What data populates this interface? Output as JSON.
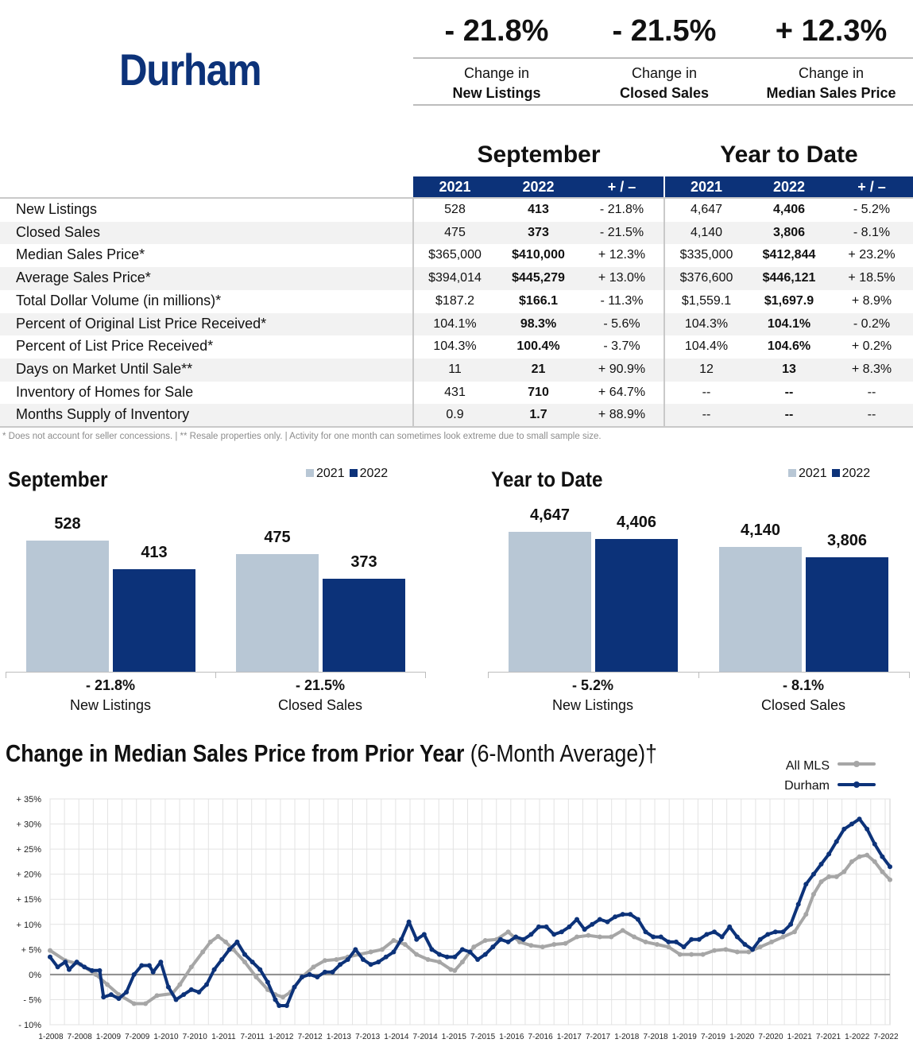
{
  "header": {
    "area_title": "Durham",
    "kpis": [
      {
        "value": "- 21.8%",
        "line1": "Change in",
        "line2": "New Listings"
      },
      {
        "value": "- 21.5%",
        "line1": "Change in",
        "line2": "Closed Sales"
      },
      {
        "value": "+ 12.3%",
        "line1": "Change in",
        "line2": "Median Sales Price"
      }
    ]
  },
  "table": {
    "section_month": "September",
    "section_ytd": "Year to Date",
    "columns": [
      "2021",
      "2022",
      "+ / –",
      "2021",
      "2022",
      "+ / –"
    ],
    "rows": [
      {
        "label": "New Listings",
        "m2021": "528",
        "m2022": "413",
        "mchg": "- 21.8%",
        "y2021": "4,647",
        "y2022": "4,406",
        "ychg": "- 5.2%"
      },
      {
        "label": "Closed Sales",
        "m2021": "475",
        "m2022": "373",
        "mchg": "- 21.5%",
        "y2021": "4,140",
        "y2022": "3,806",
        "ychg": "- 8.1%"
      },
      {
        "label": "Median Sales Price*",
        "m2021": "$365,000",
        "m2022": "$410,000",
        "mchg": "+ 12.3%",
        "y2021": "$335,000",
        "y2022": "$412,844",
        "ychg": "+ 23.2%"
      },
      {
        "label": "Average Sales Price*",
        "m2021": "$394,014",
        "m2022": "$445,279",
        "mchg": "+ 13.0%",
        "y2021": "$376,600",
        "y2022": "$446,121",
        "ychg": "+ 18.5%"
      },
      {
        "label": "Total Dollar Volume (in millions)*",
        "m2021": "$187.2",
        "m2022": "$166.1",
        "mchg": "- 11.3%",
        "y2021": "$1,559.1",
        "y2022": "$1,697.9",
        "ychg": "+ 8.9%"
      },
      {
        "label": "Percent of Original List Price Received*",
        "m2021": "104.1%",
        "m2022": "98.3%",
        "mchg": "- 5.6%",
        "y2021": "104.3%",
        "y2022": "104.1%",
        "ychg": "- 0.2%"
      },
      {
        "label": "Percent of List Price Received*",
        "m2021": "104.3%",
        "m2022": "100.4%",
        "mchg": "- 3.7%",
        "y2021": "104.4%",
        "y2022": "104.6%",
        "ychg": "+ 0.2%"
      },
      {
        "label": "Days on Market Until Sale**",
        "m2021": "11",
        "m2022": "21",
        "mchg": "+ 90.9%",
        "y2021": "12",
        "y2022": "13",
        "ychg": "+ 8.3%"
      },
      {
        "label": "Inventory of Homes for Sale",
        "m2021": "431",
        "m2022": "710",
        "mchg": "+ 64.7%",
        "y2021": "--",
        "y2022": "--",
        "ychg": "--"
      },
      {
        "label": "Months Supply of Inventory",
        "m2021": "0.9",
        "m2022": "1.7",
        "mchg": "+ 88.9%",
        "y2021": "--",
        "y2022": "--",
        "ychg": "--"
      }
    ],
    "footnote": "* Does not account for seller concessions.  |  ** Resale properties only.  |  Activity for one month can sometimes look extreme due to small sample size."
  },
  "colors": {
    "navy": "#0c3279",
    "light_bar": "#b8c7d5",
    "all_mls_line": "#a6a6a6"
  },
  "chart_data": [
    {
      "type": "bar",
      "title": "September",
      "legend": [
        "2021",
        "2022"
      ],
      "categories": [
        "New Listings",
        "Closed Sales"
      ],
      "change_labels": [
        "- 21.8%",
        "- 21.5%"
      ],
      "series": [
        {
          "name": "2021",
          "values": [
            528,
            475
          ],
          "labels": [
            "528",
            "475"
          ]
        },
        {
          "name": "2022",
          "values": [
            413,
            373
          ],
          "labels": [
            "413",
            "373"
          ]
        }
      ],
      "ylim": [
        0,
        528
      ]
    },
    {
      "type": "bar",
      "title": "Year to Date",
      "legend": [
        "2021",
        "2022"
      ],
      "categories": [
        "New Listings",
        "Closed Sales"
      ],
      "change_labels": [
        "- 5.2%",
        "- 8.1%"
      ],
      "series": [
        {
          "name": "2021",
          "values": [
            4647,
            4140
          ],
          "labels": [
            "4,647",
            "4,140"
          ]
        },
        {
          "name": "2022",
          "values": [
            4406,
            3806
          ],
          "labels": [
            "4,406",
            "3,806"
          ]
        }
      ],
      "ylim": [
        0,
        4647
      ]
    },
    {
      "type": "line",
      "title_bold": "Change in Median Sales Price from Prior Year",
      "title_rest": " (6-Month Average)†",
      "ylim": [
        -10,
        35
      ],
      "y_ticks": [
        -10,
        -5,
        0,
        5,
        10,
        15,
        20,
        25,
        30,
        35
      ],
      "y_tick_labels": [
        "- 10%",
        "- 5%",
        "0%",
        "+ 5%",
        "+ 10%",
        "+ 15%",
        "+ 20%",
        "+ 25%",
        "+ 30%",
        "+ 35%"
      ],
      "x_tick_labels": [
        "1-2008",
        "7-2008",
        "1-2009",
        "7-2009",
        "1-2010",
        "7-2010",
        "1-2011",
        "7-2011",
        "1-2012",
        "7-2012",
        "1-2013",
        "7-2013",
        "1-2014",
        "7-2014",
        "1-2015",
        "7-2015",
        "1-2016",
        "7-2016",
        "1-2017",
        "7-2017",
        "1-2018",
        "7-2018",
        "1-2019",
        "7-2019",
        "1-2020",
        "7-2020",
        "1-2021",
        "7-2021",
        "1-2022",
        "7-2022"
      ],
      "x_start": "1-2008",
      "x_end": "9-2022",
      "series": [
        {
          "name": "All MLS",
          "anchors": [
            [
              0,
              4.8
            ],
            [
              4,
              2.8
            ],
            [
              8,
              2.0
            ],
            [
              12,
              0.0
            ],
            [
              15,
              -2.0
            ],
            [
              18,
              -4.0
            ],
            [
              22,
              -5.8
            ],
            [
              25,
              -5.8
            ],
            [
              28,
              -4.2
            ],
            [
              32,
              -3.8
            ],
            [
              34,
              -2.0
            ],
            [
              37,
              1.5
            ],
            [
              40,
              4.5
            ],
            [
              42,
              6.5
            ],
            [
              44,
              7.6
            ],
            [
              46,
              6.5
            ],
            [
              48,
              5.0
            ],
            [
              51,
              2.5
            ],
            [
              54,
              -0.5
            ],
            [
              57,
              -3.0
            ],
            [
              59,
              -4.0
            ],
            [
              61,
              -4.5
            ],
            [
              63,
              -3.5
            ],
            [
              66,
              -0.5
            ],
            [
              69,
              1.5
            ],
            [
              72,
              2.8
            ],
            [
              75,
              3.0
            ],
            [
              78,
              3.5
            ],
            [
              81,
              4.0
            ],
            [
              84,
              4.5
            ],
            [
              87,
              5.0
            ],
            [
              90,
              6.8
            ],
            [
              93,
              6.0
            ],
            [
              96,
              4.0
            ],
            [
              99,
              3.0
            ],
            [
              102,
              2.5
            ],
            [
              105,
              1.0
            ],
            [
              106,
              0.8
            ],
            [
              108,
              2.5
            ],
            [
              111,
              5.5
            ],
            [
              114,
              6.8
            ],
            [
              117,
              7.0
            ],
            [
              120,
              8.5
            ],
            [
              123,
              6.5
            ],
            [
              126,
              5.8
            ],
            [
              129,
              5.5
            ],
            [
              132,
              6.0
            ],
            [
              135,
              6.2
            ],
            [
              138,
              7.5
            ],
            [
              141,
              7.8
            ],
            [
              144,
              7.5
            ],
            [
              147,
              7.5
            ],
            [
              150,
              8.8
            ],
            [
              153,
              7.5
            ],
            [
              156,
              6.5
            ],
            [
              159,
              6.0
            ],
            [
              162,
              5.5
            ],
            [
              165,
              4.0
            ],
            [
              168,
              4.0
            ],
            [
              171,
              4.0
            ],
            [
              174,
              4.8
            ],
            [
              177,
              5.0
            ],
            [
              180,
              4.5
            ],
            [
              183,
              4.5
            ],
            [
              186,
              5.5
            ],
            [
              189,
              6.5
            ],
            [
              192,
              7.5
            ],
            [
              195,
              8.5
            ],
            [
              198,
              12.0
            ],
            [
              200,
              16.0
            ],
            [
              202,
              18.5
            ],
            [
              204,
              19.5
            ],
            [
              206,
              19.5
            ],
            [
              208,
              20.5
            ],
            [
              210,
              22.5
            ],
            [
              212,
              23.5
            ],
            [
              214,
              23.8
            ],
            [
              216,
              22.5
            ],
            [
              218,
              20.5
            ],
            [
              220,
              18.9
            ]
          ]
        },
        {
          "name": "Durham",
          "anchors": [
            [
              0,
              3.5
            ],
            [
              2,
              1.5
            ],
            [
              4,
              2.5
            ],
            [
              5,
              1.0
            ],
            [
              7,
              2.5
            ],
            [
              9,
              1.5
            ],
            [
              11,
              0.8
            ],
            [
              13,
              0.8
            ],
            [
              14,
              -4.5
            ],
            [
              16,
              -4.0
            ],
            [
              18,
              -4.8
            ],
            [
              20,
              -3.5
            ],
            [
              22,
              0.0
            ],
            [
              24,
              1.8
            ],
            [
              26,
              1.8
            ],
            [
              27,
              0.5
            ],
            [
              29,
              2.5
            ],
            [
              31,
              -2.5
            ],
            [
              33,
              -5.0
            ],
            [
              35,
              -4.0
            ],
            [
              37,
              -3.0
            ],
            [
              39,
              -3.5
            ],
            [
              41,
              -2.0
            ],
            [
              43,
              1.0
            ],
            [
              45,
              3.0
            ],
            [
              47,
              5.0
            ],
            [
              49,
              6.5
            ],
            [
              51,
              4.0
            ],
            [
              53,
              2.5
            ],
            [
              55,
              1.0
            ],
            [
              57,
              -1.5
            ],
            [
              59,
              -5.0
            ],
            [
              60,
              -6.2
            ],
            [
              62,
              -6.2
            ],
            [
              64,
              -2.5
            ],
            [
              66,
              -0.5
            ],
            [
              68,
              0.0
            ],
            [
              70,
              -0.5
            ],
            [
              72,
              0.5
            ],
            [
              74,
              0.5
            ],
            [
              76,
              2.0
            ],
            [
              78,
              3.0
            ],
            [
              80,
              5.0
            ],
            [
              82,
              3.0
            ],
            [
              84,
              2.0
            ],
            [
              86,
              2.5
            ],
            [
              88,
              3.5
            ],
            [
              90,
              4.5
            ],
            [
              92,
              7.0
            ],
            [
              94,
              10.5
            ],
            [
              96,
              7.0
            ],
            [
              98,
              8.0
            ],
            [
              100,
              5.0
            ],
            [
              102,
              4.0
            ],
            [
              104,
              3.5
            ],
            [
              106,
              3.5
            ],
            [
              108,
              5.0
            ],
            [
              110,
              4.5
            ],
            [
              112,
              3.0
            ],
            [
              114,
              4.0
            ],
            [
              116,
              5.5
            ],
            [
              118,
              7.0
            ],
            [
              120,
              6.5
            ],
            [
              122,
              7.5
            ],
            [
              124,
              7.0
            ],
            [
              126,
              8.0
            ],
            [
              128,
              9.5
            ],
            [
              130,
              9.5
            ],
            [
              132,
              8.0
            ],
            [
              134,
              8.5
            ],
            [
              136,
              9.5
            ],
            [
              138,
              11.0
            ],
            [
              140,
              9.0
            ],
            [
              142,
              10.0
            ],
            [
              144,
              11.0
            ],
            [
              146,
              10.5
            ],
            [
              148,
              11.5
            ],
            [
              150,
              12.0
            ],
            [
              152,
              12.0
            ],
            [
              154,
              11.0
            ],
            [
              156,
              8.5
            ],
            [
              158,
              7.5
            ],
            [
              160,
              7.5
            ],
            [
              162,
              6.5
            ],
            [
              164,
              6.5
            ],
            [
              166,
              5.5
            ],
            [
              168,
              7.0
            ],
            [
              170,
              7.0
            ],
            [
              172,
              8.0
            ],
            [
              174,
              8.5
            ],
            [
              176,
              7.5
            ],
            [
              178,
              9.5
            ],
            [
              180,
              7.5
            ],
            [
              182,
              6.0
            ],
            [
              184,
              5.0
            ],
            [
              186,
              7.0
            ],
            [
              188,
              8.0
            ],
            [
              190,
              8.5
            ],
            [
              192,
              8.5
            ],
            [
              194,
              10.0
            ],
            [
              196,
              14.0
            ],
            [
              198,
              18.0
            ],
            [
              200,
              20.0
            ],
            [
              202,
              22.0
            ],
            [
              204,
              24.0
            ],
            [
              206,
              26.5
            ],
            [
              208,
              29.0
            ],
            [
              210,
              30.0
            ],
            [
              212,
              31.0
            ],
            [
              214,
              29.0
            ],
            [
              216,
              26.0
            ],
            [
              218,
              23.5
            ],
            [
              220,
              21.5
            ]
          ]
        }
      ],
      "legend": [
        "All MLS",
        "Durham"
      ]
    }
  ]
}
